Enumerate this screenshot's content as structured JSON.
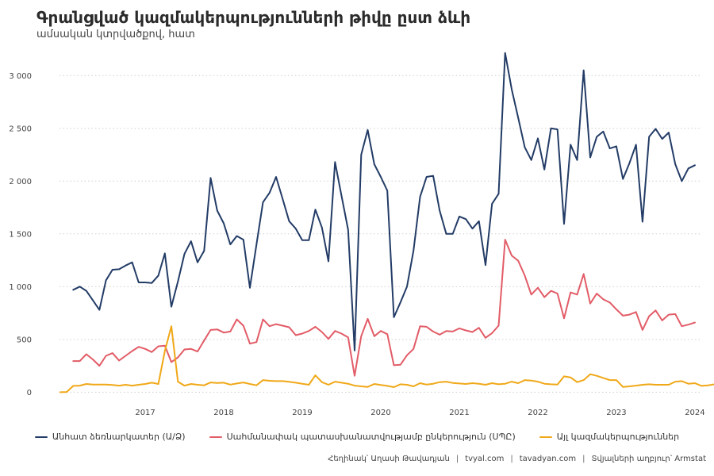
{
  "title": "Գրանցված կազմակերպությունների թիվը ըստ ձևի",
  "subtitle": "ամսական կտրվածքով, հատ",
  "footer": {
    "author": "Հեղինակ՝ Աղասի Թավադյան",
    "site1": "tvyal.com",
    "site2": "tavadyan.com",
    "source": "Տվյալների աղբյուր՝ Armstat"
  },
  "chart_data": {
    "type": "line",
    "x_start": "2016-08",
    "x_end": "2024-08",
    "x_tick_labels": [
      "2017",
      "2018",
      "2019",
      "2020",
      "2021",
      "2022",
      "2023",
      "2024"
    ],
    "y_ticks": [
      0,
      500,
      1000,
      1500,
      2000,
      2500,
      3000
    ],
    "y_tick_labels": [
      "0",
      "500",
      "1 000",
      "1 500",
      "2 000",
      "2 500",
      "3 000"
    ],
    "ylim": [
      -80,
      3250
    ],
    "grid": "horizontal dotted",
    "legend_position": "bottom",
    "series": [
      {
        "name": "Անհատ ձեռնարկատեր (Ա/Ձ)",
        "color": "#233c66",
        "start": "2016-08",
        "values": [
          970,
          1000,
          960,
          870,
          780,
          1060,
          1160,
          1165,
          1200,
          1230,
          1040,
          1040,
          1035,
          1105,
          1315,
          810,
          1050,
          1310,
          1430,
          1230,
          1340,
          2030,
          1720,
          1600,
          1400,
          1480,
          1445,
          990,
          1400,
          1800,
          1890,
          2040,
          1830,
          1620,
          1550,
          1440,
          1440,
          1730,
          1560,
          1240,
          2180,
          1860,
          1540,
          395,
          2250,
          2485,
          2160,
          2040,
          1910,
          710,
          850,
          1000,
          1340,
          1850,
          2040,
          2050,
          1720,
          1500,
          1500,
          1665,
          1640,
          1550,
          1620,
          1205,
          1785,
          1880,
          3215,
          2870,
          2600,
          2320,
          2200,
          2405,
          2110,
          2500,
          2490,
          1595,
          2345,
          2200,
          3050,
          2225,
          2420,
          2470,
          2310,
          2330,
          2020,
          2170,
          2345,
          1615,
          2420,
          2495,
          2400,
          2460,
          2160,
          2000,
          2120,
          2150
        ]
      },
      {
        "name": "Սահմանափակ պատասխանատվությամբ ընկերություն (ՍՊԸ)",
        "color": "#e25c67",
        "start": "2016-08",
        "values": [
          295,
          295,
          360,
          310,
          250,
          345,
          370,
          300,
          345,
          390,
          430,
          410,
          380,
          435,
          440,
          285,
          330,
          405,
          410,
          385,
          490,
          590,
          595,
          565,
          575,
          690,
          630,
          460,
          475,
          690,
          625,
          645,
          630,
          615,
          540,
          555,
          580,
          620,
          570,
          505,
          580,
          555,
          520,
          155,
          530,
          695,
          530,
          580,
          550,
          255,
          260,
          350,
          410,
          625,
          620,
          575,
          545,
          580,
          575,
          605,
          585,
          570,
          610,
          515,
          560,
          630,
          1445,
          1295,
          1245,
          1105,
          925,
          990,
          900,
          960,
          935,
          700,
          945,
          925,
          1120,
          840,
          935,
          880,
          850,
          785,
          725,
          735,
          760,
          590,
          720,
          775,
          680,
          735,
          740,
          625,
          640,
          660
        ]
      },
      {
        "name": "Այլ կազմակերպություններ",
        "color": "#f0a818",
        "start": "2016-06",
        "values": [
          0,
          2,
          60,
          62,
          78,
          72,
          72,
          72,
          68,
          62,
          70,
          62,
          70,
          78,
          90,
          78,
          390,
          625,
          100,
          62,
          78,
          70,
          65,
          92,
          88,
          90,
          72,
          82,
          92,
          78,
          65,
          115,
          108,
          105,
          105,
          98,
          90,
          80,
          70,
          160,
          95,
          70,
          100,
          90,
          80,
          62,
          55,
          50,
          78,
          68,
          60,
          48,
          75,
          70,
          55,
          85,
          72,
          80,
          95,
          100,
          88,
          82,
          78,
          85,
          80,
          70,
          85,
          75,
          80,
          100,
          85,
          115,
          110,
          100,
          80,
          75,
          72,
          150,
          140,
          95,
          115,
          170,
          155,
          135,
          115,
          115,
          50,
          55,
          62,
          70,
          75,
          70,
          70,
          70,
          100,
          105,
          80,
          85,
          60,
          65,
          75
        ]
      }
    ]
  }
}
